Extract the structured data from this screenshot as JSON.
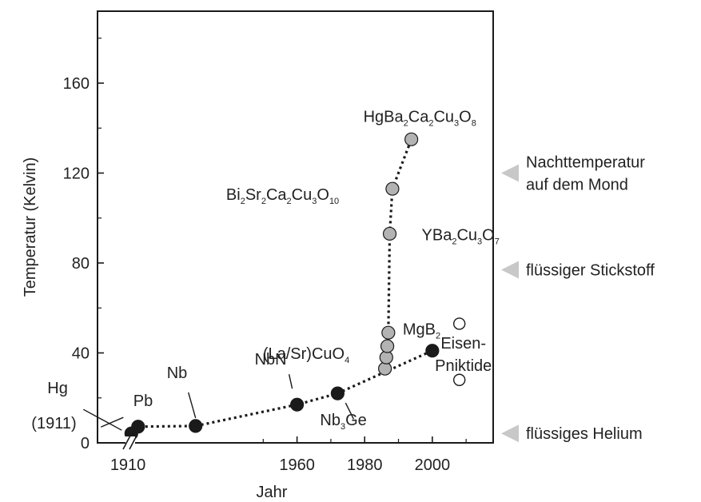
{
  "chart_data": {
    "type": "scatter",
    "xlabel": "Jahr",
    "ylabel": "Temperatur (Kelvin)",
    "xlim": [
      1901,
      2018
    ],
    "ylim": [
      0,
      192
    ],
    "x_ticks": [
      1910,
      1960,
      1980,
      2000
    ],
    "x_tick_labels": [
      "1910",
      "1960",
      "1980",
      "2000"
    ],
    "y_ticks": [
      0,
      40,
      80,
      120,
      160
    ],
    "y_tick_labels": [
      "0",
      "40",
      "80",
      "120",
      "160"
    ],
    "grid": false,
    "axis_break": true,
    "colors": {
      "conventional": "#1a1a1a",
      "cuprate": "#b3b3b3",
      "pnictide": "#ffffff",
      "reference_marker": "#c8c8c8",
      "line": "#1a1a1a"
    },
    "series": [
      {
        "group": "conventional",
        "points": [
          {
            "x": 1911,
            "y": 4.2,
            "label": [
              "Hg",
              "(1911)"
            ]
          },
          {
            "x": 1913,
            "y": 7.2,
            "label": [
              "Pb"
            ]
          },
          {
            "x": 1930,
            "y": 7.5,
            "label": [
              "Nb"
            ]
          },
          {
            "x": 1960,
            "y": 17,
            "label": [
              "NbN"
            ]
          },
          {
            "x": 1972,
            "y": 22,
            "label": [
              [
                "Nb",
                ""
              ],
              [
                "3",
                "sub"
              ],
              [
                "Ge",
                ""
              ]
            ]
          },
          {
            "x": 2000,
            "y": 41,
            "label": [
              [
                "MgB",
                ""
              ],
              [
                "2",
                "sub"
              ]
            ]
          }
        ],
        "trend_line": true
      },
      {
        "group": "cuprate",
        "points": [
          {
            "x": 1986,
            "y": 33
          },
          {
            "x": 1986.4,
            "y": 38
          },
          {
            "x": 1986.7,
            "y": 43
          },
          {
            "x": 1987,
            "y": 49,
            "label": [
              [
                "(La/Sr)CuO",
                ""
              ],
              [
                "4",
                "sub"
              ]
            ]
          },
          {
            "x": 1987.4,
            "y": 93,
            "label": [
              [
                "YBa",
                ""
              ],
              [
                "2",
                "sub"
              ],
              [
                "Cu",
                ""
              ],
              [
                "3",
                "sub"
              ],
              [
                "O",
                ""
              ],
              [
                "7",
                "sub"
              ]
            ]
          },
          {
            "x": 1988.2,
            "y": 113,
            "label": [
              [
                "Bi",
                ""
              ],
              [
                "2",
                "sub"
              ],
              [
                "Sr",
                ""
              ],
              [
                "2",
                "sub"
              ],
              [
                "Ca",
                ""
              ],
              [
                "2",
                "sub"
              ],
              [
                "Cu",
                ""
              ],
              [
                "3",
                "sub"
              ],
              [
                "O",
                ""
              ],
              [
                "10",
                "sub"
              ]
            ]
          },
          {
            "x": 1993.8,
            "y": 135,
            "label": [
              [
                "HgBa",
                ""
              ],
              [
                "2",
                "sub"
              ],
              [
                "Ca",
                ""
              ],
              [
                "2",
                "sub"
              ],
              [
                "Cu",
                ""
              ],
              [
                "3",
                "sub"
              ],
              [
                "O",
                ""
              ],
              [
                "8",
                "sub"
              ]
            ]
          }
        ],
        "trend_line": true
      },
      {
        "group": "pnictide",
        "points": [
          {
            "x": 2008,
            "y": 53
          },
          {
            "x": 2008,
            "y": 28
          }
        ],
        "label": [
          "Eisen-",
          "Pniktide"
        ]
      }
    ],
    "reference_levels": [
      {
        "y": 4.2,
        "label": [
          "flüssiges Helium"
        ]
      },
      {
        "y": 77,
        "label": [
          "flüssiger Stickstoff"
        ]
      },
      {
        "y": 120,
        "label": [
          "Nachttemperatur",
          "auf dem Mond"
        ]
      }
    ]
  }
}
